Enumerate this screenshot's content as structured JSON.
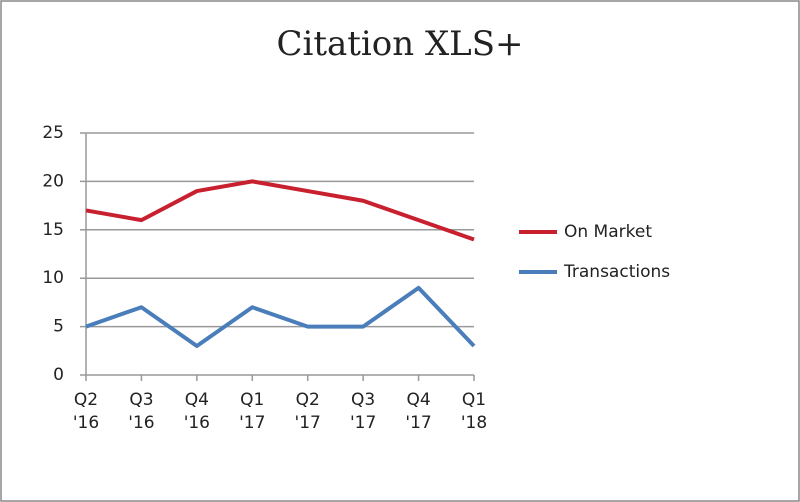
{
  "chart_data": {
    "type": "line",
    "title": "Citation XLS+",
    "categories": [
      "Q2 '16",
      "Q3 '16",
      "Q4 '16",
      "Q1 '17",
      "Q2 '17",
      "Q3 '17",
      "Q4 '17",
      "Q1 '18"
    ],
    "series": [
      {
        "name": "On Market",
        "color": "#c8202f",
        "values": [
          17,
          16,
          19,
          20,
          19,
          18,
          16,
          14
        ]
      },
      {
        "name": "Transactions",
        "color": "#4a7ebb",
        "values": [
          5,
          7,
          3,
          7,
          5,
          5,
          9,
          3
        ]
      }
    ],
    "ylim": [
      0,
      25
    ],
    "yticks": [
      0,
      5,
      10,
      15,
      20,
      25
    ],
    "grid": true,
    "legend": "right"
  }
}
